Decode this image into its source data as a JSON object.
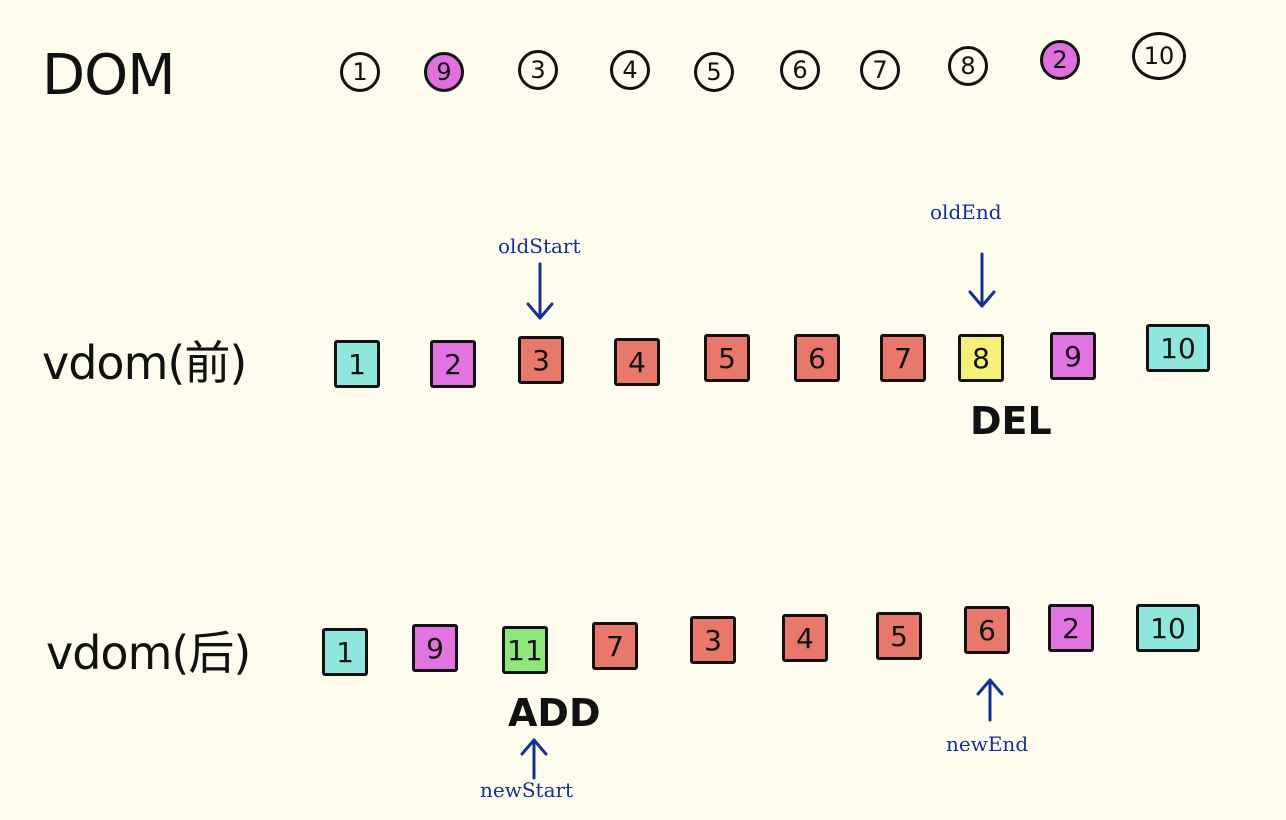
{
  "dom_row": {
    "label": "DOM",
    "nodes": [
      {
        "text": "1",
        "fill": "none"
      },
      {
        "text": "9",
        "fill": "#e06fe0"
      },
      {
        "text": "3",
        "fill": "none"
      },
      {
        "text": "4",
        "fill": "none"
      },
      {
        "text": "5",
        "fill": "none"
      },
      {
        "text": "6",
        "fill": "none"
      },
      {
        "text": "7",
        "fill": "none"
      },
      {
        "text": "8",
        "fill": "none"
      },
      {
        "text": "2",
        "fill": "#e06fe0"
      },
      {
        "text": "10",
        "fill": "none"
      }
    ]
  },
  "old_row": {
    "label": "vdom(前)",
    "nodes": [
      {
        "text": "1",
        "color": "#8fe6dc"
      },
      {
        "text": "2",
        "color": "#e274e2"
      },
      {
        "text": "3",
        "color": "#e9786c"
      },
      {
        "text": "4",
        "color": "#e9786c"
      },
      {
        "text": "5",
        "color": "#e9786c"
      },
      {
        "text": "6",
        "color": "#e9786c"
      },
      {
        "text": "7",
        "color": "#e9786c"
      },
      {
        "text": "8",
        "color": "#f6ef78"
      },
      {
        "text": "9",
        "color": "#e274e2"
      },
      {
        "text": "10",
        "color": "#8fe6dc"
      }
    ],
    "del_caption": "DEL",
    "old_start_label": "oldStart",
    "old_end_label": "oldEnd"
  },
  "new_row": {
    "label": "vdom(后)",
    "nodes": [
      {
        "text": "1",
        "color": "#8fe6dc"
      },
      {
        "text": "9",
        "color": "#e274e2"
      },
      {
        "text": "11",
        "color": "#8fe67c"
      },
      {
        "text": "7",
        "color": "#e9786c"
      },
      {
        "text": "3",
        "color": "#e9786c"
      },
      {
        "text": "4",
        "color": "#e9786c"
      },
      {
        "text": "5",
        "color": "#e9786c"
      },
      {
        "text": "6",
        "color": "#e9786c"
      },
      {
        "text": "2",
        "color": "#e274e2"
      },
      {
        "text": "10",
        "color": "#8fe6dc"
      }
    ],
    "add_caption": "ADD",
    "new_start_label": "newStart",
    "new_end_label": "newEnd"
  },
  "colors": {
    "background": "#fdfbee",
    "ink": "#111111",
    "pointer": "#16318f"
  }
}
